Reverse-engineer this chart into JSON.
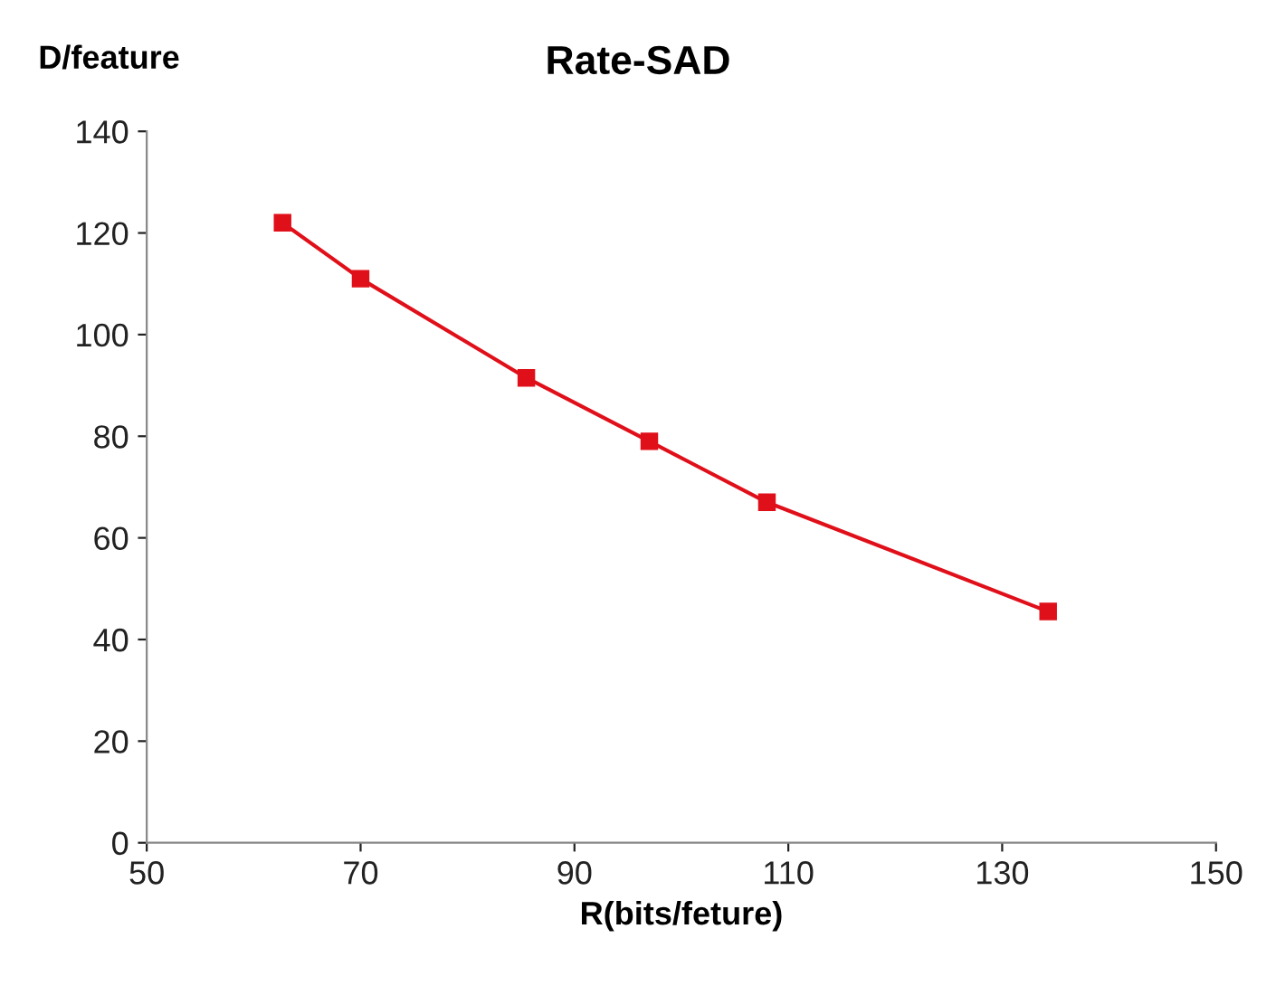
{
  "chart_data": {
    "type": "line",
    "title": "Rate-SAD",
    "xlabel": "R(bits/feture)",
    "ylabel": "D/feature",
    "x": [
      62.7,
      70,
      85.5,
      97,
      108,
      134.3
    ],
    "series": [
      {
        "color": "#e0101a",
        "values": [
          122,
          111,
          91.5,
          79,
          67,
          45.5
        ]
      }
    ],
    "xlim": [
      50,
      150
    ],
    "xticks": [
      50,
      70,
      90,
      110,
      130,
      150
    ],
    "ylim": [
      0,
      140
    ],
    "yticks": [
      0,
      20,
      40,
      60,
      80,
      100,
      120,
      140
    ],
    "grid": false,
    "legend": false,
    "marker": "square",
    "line_style": "solid"
  }
}
